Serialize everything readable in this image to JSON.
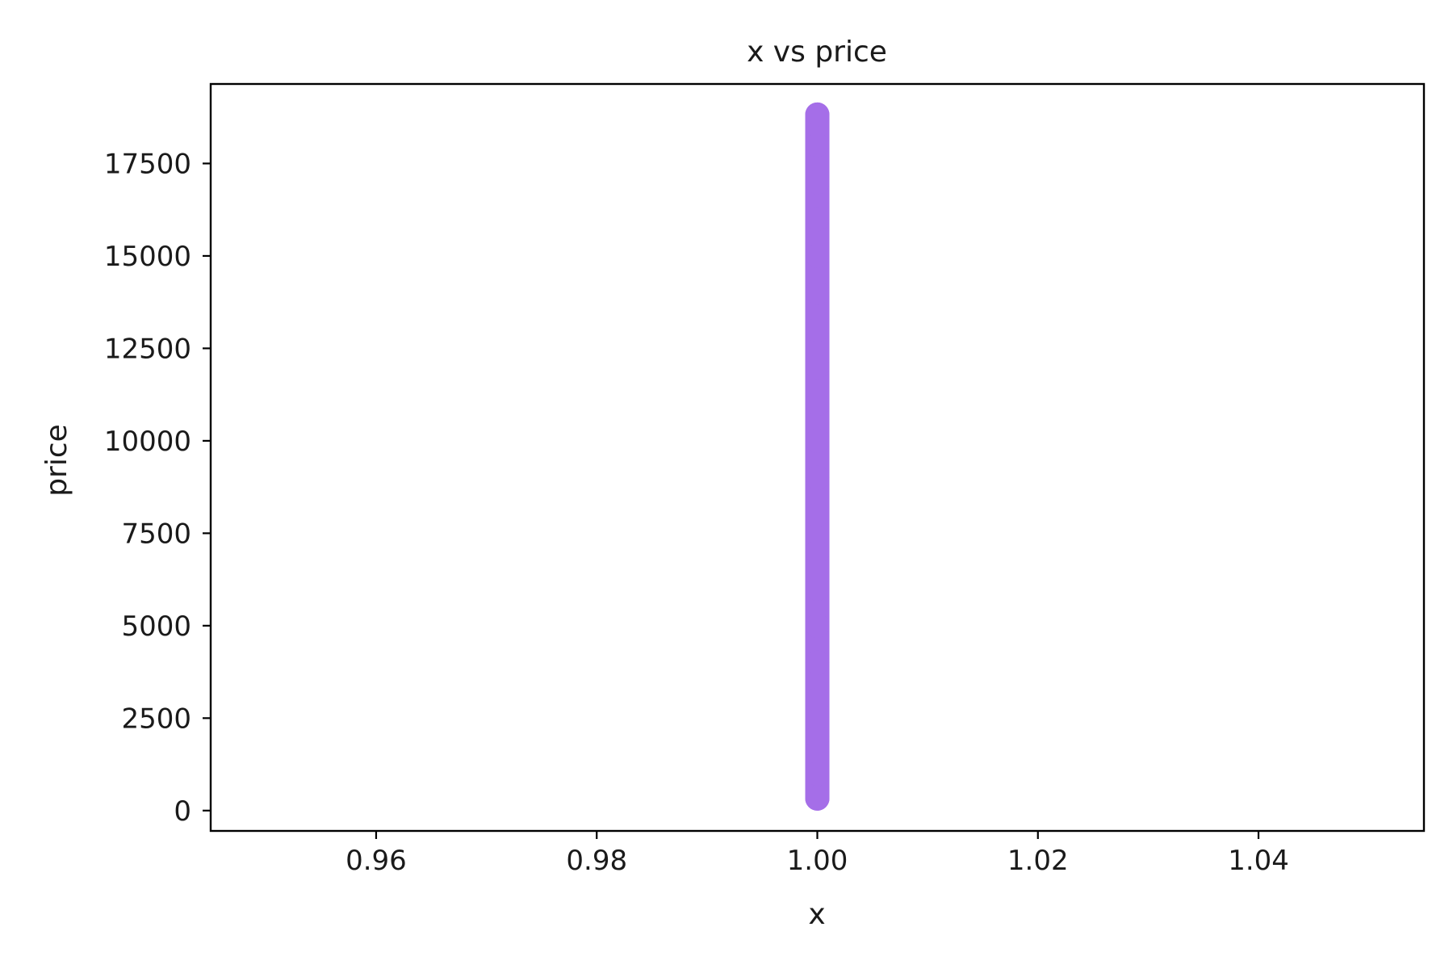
{
  "chart_data": {
    "type": "scatter",
    "title": "x vs price",
    "xlabel": "x",
    "ylabel": "price",
    "xlim": [
      0.945,
      1.055
    ],
    "ylim": [
      -550,
      19650
    ],
    "x_ticks": [
      0.96,
      0.98,
      1.0,
      1.02,
      1.04
    ],
    "x_tick_labels": [
      "0.96",
      "0.98",
      "1.00",
      "1.02",
      "1.04"
    ],
    "y_ticks": [
      0,
      2500,
      5000,
      7500,
      10000,
      12500,
      15000,
      17500
    ],
    "y_tick_labels": [
      "0",
      "2500",
      "5000",
      "7500",
      "10000",
      "12500",
      "15000",
      "17500"
    ],
    "grid": false,
    "legend": "none",
    "marker_color": "#a56ee8",
    "series": [
      {
        "x": [
          1.0,
          1.0,
          1.0,
          1.0,
          1.0,
          1.0,
          1.0,
          1.0,
          1.0,
          1.0,
          1.0,
          1.0,
          1.0,
          1.0,
          1.0,
          1.0,
          1.0,
          1.0,
          1.0,
          1.0
        ],
        "y": [
          326,
          1000,
          2000,
          3000,
          4000,
          5000,
          6000,
          7000,
          8000,
          9000,
          10000,
          11000,
          12000,
          13000,
          14000,
          15000,
          16000,
          17000,
          18000,
          18823
        ]
      }
    ]
  }
}
